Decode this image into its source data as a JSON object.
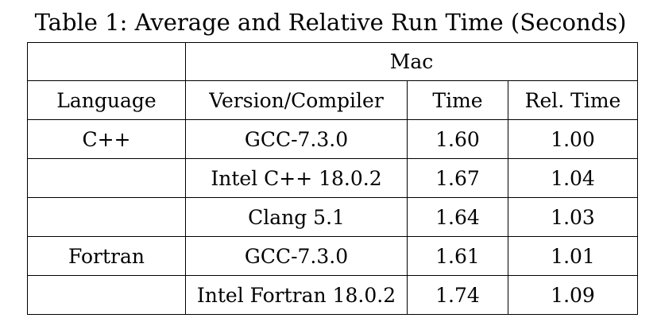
{
  "caption": "Table 1: Average and Relative Run Time (Seconds)",
  "header": {
    "group": "Mac",
    "columns": [
      "Language",
      "Version/Compiler",
      "Time",
      "Rel. Time"
    ]
  },
  "rows": [
    {
      "language": "C++",
      "compiler": "GCC-7.3.0",
      "time": "1.60",
      "rel_time": "1.00"
    },
    {
      "language": "",
      "compiler": "Intel C++ 18.0.2",
      "time": "1.67",
      "rel_time": "1.04"
    },
    {
      "language": "",
      "compiler": "Clang 5.1",
      "time": "1.64",
      "rel_time": "1.03"
    },
    {
      "language": "Fortran",
      "compiler": "GCC-7.3.0",
      "time": "1.61",
      "rel_time": "1.01"
    },
    {
      "language": "",
      "compiler": "Intel Fortran 18.0.2",
      "time": "1.74",
      "rel_time": "1.09"
    }
  ]
}
